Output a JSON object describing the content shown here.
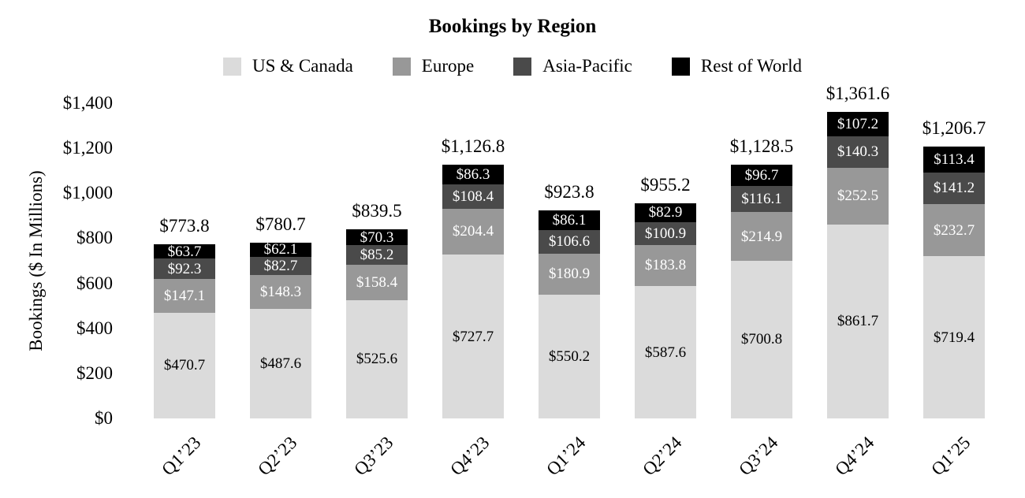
{
  "title": "Bookings by Region",
  "chart_data": {
    "type": "bar",
    "stacked": true,
    "title": "Bookings by Region",
    "xlabel": "",
    "ylabel": "Bookings ($ In Millions)",
    "legend_position": "top",
    "grid": false,
    "ylim": [
      0,
      1400
    ],
    "categories": [
      "Q1’23",
      "Q2’23",
      "Q3’23",
      "Q4’23",
      "Q1’24",
      "Q2’24",
      "Q3’24",
      "Q4’24",
      "Q1’25"
    ],
    "yticks": {
      "values": [
        0,
        200,
        400,
        600,
        800,
        1000,
        1200,
        1400
      ],
      "labels": [
        "$0",
        "$200",
        "$400",
        "$600",
        "$800",
        "$1,000",
        "$1,200",
        "$1,400"
      ]
    },
    "series": [
      {
        "name": "US & Canada",
        "color": "#dbdbdb",
        "label_color": "#000000",
        "values": [
          470.7,
          487.6,
          525.6,
          727.7,
          550.2,
          587.6,
          700.8,
          861.7,
          719.4
        ],
        "labels": [
          "$470.7",
          "$487.6",
          "$525.6",
          "$727.7",
          "$550.2",
          "$587.6",
          "$700.8",
          "$861.7",
          "$719.4"
        ]
      },
      {
        "name": "Europe",
        "color": "#989898",
        "label_color": "#ffffff",
        "values": [
          147.1,
          148.3,
          158.4,
          204.4,
          180.9,
          183.8,
          214.9,
          252.5,
          232.7
        ],
        "labels": [
          "$147.1",
          "$148.3",
          "$158.4",
          "$204.4",
          "$180.9",
          "$183.8",
          "$214.9",
          "$252.5",
          "$232.7"
        ]
      },
      {
        "name": "Asia-Pacific",
        "color": "#4a4a4a",
        "label_color": "#ffffff",
        "values": [
          92.3,
          82.7,
          85.2,
          108.4,
          106.6,
          100.9,
          116.1,
          140.3,
          141.2
        ],
        "labels": [
          "$92.3",
          "$82.7",
          "$85.2",
          "$108.4",
          "$106.6",
          "$100.9",
          "$116.1",
          "$140.3",
          "$141.2"
        ]
      },
      {
        "name": "Rest of World",
        "color": "#000000",
        "label_color": "#ffffff",
        "values": [
          63.7,
          62.1,
          70.3,
          86.3,
          86.1,
          82.9,
          96.7,
          107.2,
          113.4
        ],
        "labels": [
          "$63.7",
          "$62.1",
          "$70.3",
          "$86.3",
          "$86.1",
          "$82.9",
          "$96.7",
          "$107.2",
          "$113.4"
        ]
      }
    ],
    "totals": [
      773.8,
      780.7,
      839.5,
      1126.8,
      923.8,
      955.2,
      1128.5,
      1361.6,
      1206.7
    ],
    "total_labels": [
      "$773.8",
      "$780.7",
      "$839.5",
      "$1,126.8",
      "$923.8",
      "$955.2",
      "$1,128.5",
      "$1,361.6",
      "$1,206.7"
    ]
  }
}
